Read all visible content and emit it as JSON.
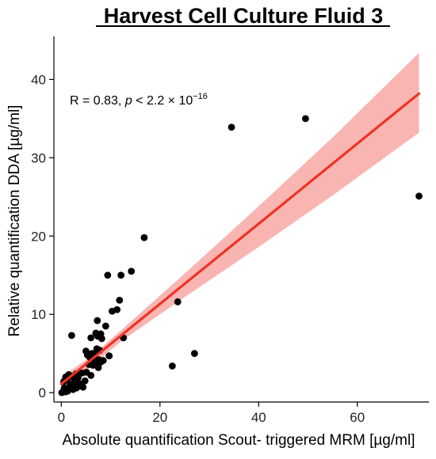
{
  "chart_data": {
    "type": "scatter",
    "title": "Harvest Cell Culture Fluid 3",
    "xlabel": "Absolute quantification Scout- triggered MRM [µg/ml]",
    "ylabel": "Relative quantification DDA [µg/ml]",
    "xlim": [
      -1.5,
      74.5
    ],
    "ylim": [
      -1.2,
      45.5
    ],
    "xticks": [
      0,
      20,
      40,
      60
    ],
    "yticks": [
      0,
      10,
      20,
      30,
      40
    ],
    "grid": false,
    "annotation": {
      "r_text": "R = 0.83, ",
      "p_symbol": "p",
      "p_text": " < 2.2 × 10",
      "p_exponent": "−16"
    },
    "regression": {
      "color": "#ee3322",
      "band_color": "#f8a8a4",
      "line": [
        [
          0,
          1.1
        ],
        [
          72.5,
          38.2
        ]
      ],
      "band_upper": [
        [
          0,
          2.0
        ],
        [
          6,
          4.6
        ],
        [
          12,
          7.9
        ],
        [
          25,
          15.2
        ],
        [
          40,
          23.8
        ],
        [
          55,
          32.6
        ],
        [
          72.5,
          43.4
        ]
      ],
      "band_lower": [
        [
          0,
          0.2
        ],
        [
          6,
          3.3
        ],
        [
          12,
          6.5
        ],
        [
          25,
          12.2
        ],
        [
          40,
          18.6
        ],
        [
          55,
          25.2
        ],
        [
          72.5,
          33.2
        ]
      ]
    },
    "points_color": "#000000",
    "points": [
      [
        0.1,
        0.0
      ],
      [
        0.3,
        0.1
      ],
      [
        0.5,
        0.2
      ],
      [
        0.7,
        0.3
      ],
      [
        0.9,
        0.1
      ],
      [
        1.1,
        0.4
      ],
      [
        0.6,
        0.6
      ],
      [
        1.3,
        0.2
      ],
      [
        1.6,
        0.5
      ],
      [
        2.0,
        0.7
      ],
      [
        1.8,
        1.0
      ],
      [
        2.4,
        0.4
      ],
      [
        2.7,
        0.8
      ],
      [
        3.1,
        0.6
      ],
      [
        3.5,
        1.2
      ],
      [
        4.0,
        0.9
      ],
      [
        4.4,
        0.7
      ],
      [
        4.8,
        1.5
      ],
      [
        0.5,
        1.4
      ],
      [
        0.9,
        2.0
      ],
      [
        1.2,
        1.7
      ],
      [
        1.5,
        2.3
      ],
      [
        2.2,
        2.1
      ],
      [
        2.6,
        1.4
      ],
      [
        3.0,
        2.4
      ],
      [
        3.4,
        1.9
      ],
      [
        3.8,
        1.1
      ],
      [
        4.2,
        2.5
      ],
      [
        5.1,
        2.6
      ],
      [
        5.6,
        3.6
      ],
      [
        6.0,
        2.2
      ],
      [
        6.4,
        3.5
      ],
      [
        6.7,
        4.2
      ],
      [
        7.0,
        3.8
      ],
      [
        7.5,
        3.2
      ],
      [
        5.3,
        4.8
      ],
      [
        5.8,
        4.5
      ],
      [
        6.2,
        5.0
      ],
      [
        5.0,
        5.3
      ],
      [
        6.8,
        4.9
      ],
      [
        7.6,
        4.2
      ],
      [
        8.0,
        3.9
      ],
      [
        8.5,
        4.1
      ],
      [
        7.2,
        5.6
      ],
      [
        7.8,
        5.4
      ],
      [
        6.0,
        7.0
      ],
      [
        7.0,
        7.6
      ],
      [
        7.4,
        7.2
      ],
      [
        8.0,
        7.5
      ],
      [
        8.2,
        6.9
      ],
      [
        7.3,
        9.2
      ],
      [
        9.0,
        8.5
      ],
      [
        9.7,
        4.7
      ],
      [
        10.3,
        10.4
      ],
      [
        11.3,
        10.6
      ],
      [
        11.8,
        11.8
      ],
      [
        12.6,
        7.0
      ],
      [
        9.4,
        15.0
      ],
      [
        12.1,
        15.0
      ],
      [
        14.2,
        15.5
      ],
      [
        16.8,
        19.8
      ],
      [
        2.1,
        7.3
      ],
      [
        22.5,
        3.4
      ],
      [
        23.6,
        11.6
      ],
      [
        27.0,
        5.0
      ],
      [
        34.5,
        33.9
      ],
      [
        49.5,
        35.0
      ],
      [
        72.5,
        25.1
      ]
    ]
  }
}
